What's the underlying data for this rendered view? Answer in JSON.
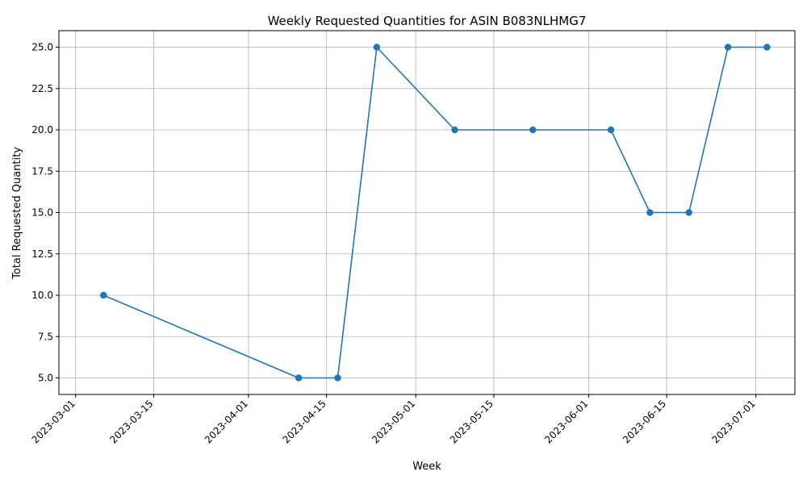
{
  "chart_data": {
    "type": "line",
    "title": "Weekly Requested Quantities for ASIN B083NLHMG7",
    "xlabel": "Week",
    "ylabel": "Total Requested Quantity",
    "x_ticks": [
      "2023-03-01",
      "2023-03-15",
      "2023-04-01",
      "2023-04-15",
      "2023-05-01",
      "2023-05-15",
      "2023-06-01",
      "2023-06-15",
      "2023-07-01"
    ],
    "y_ticks": [
      "5.0",
      "7.5",
      "10.0",
      "12.5",
      "15.0",
      "17.5",
      "20.0",
      "22.5",
      "25.0"
    ],
    "xlim": [
      "2023-02-26",
      "2023-07-08"
    ],
    "ylim": [
      4,
      26
    ],
    "grid": true,
    "line_color": "#1f77b4",
    "marker": "circle",
    "series": [
      {
        "x": [
          "2023-03-06",
          "2023-04-10",
          "2023-04-17",
          "2023-04-24",
          "2023-05-08",
          "2023-05-22",
          "2023-06-05",
          "2023-06-12",
          "2023-06-19",
          "2023-06-26",
          "2023-07-03"
        ],
        "values": [
          10,
          5,
          5,
          25,
          20,
          20,
          20,
          15,
          15,
          25,
          25
        ]
      }
    ]
  }
}
